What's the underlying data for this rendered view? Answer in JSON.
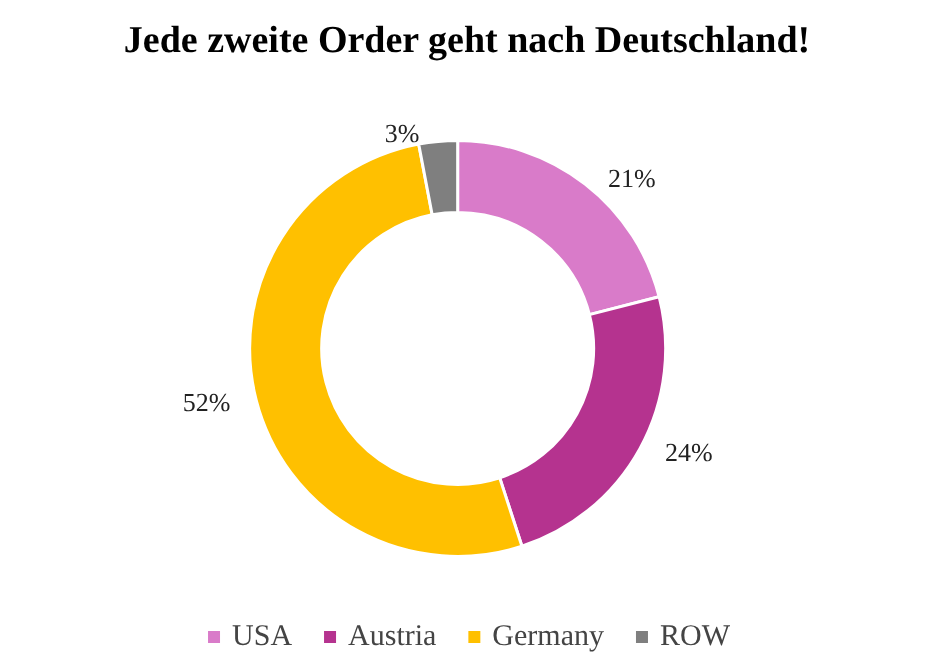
{
  "chart_data": {
    "type": "donut",
    "title": "Jede zweite Order geht nach Deutschland!",
    "categories": [
      "USA",
      "Austria",
      "Germany",
      "ROW"
    ],
    "values": [
      21,
      24,
      52,
      3
    ],
    "colors": [
      "#d97bc9",
      "#b5338f",
      "#ffc000",
      "#7f7f7f"
    ],
    "value_labels": [
      "21%",
      "24%",
      "52%",
      "3%"
    ],
    "legend": "bottom"
  }
}
